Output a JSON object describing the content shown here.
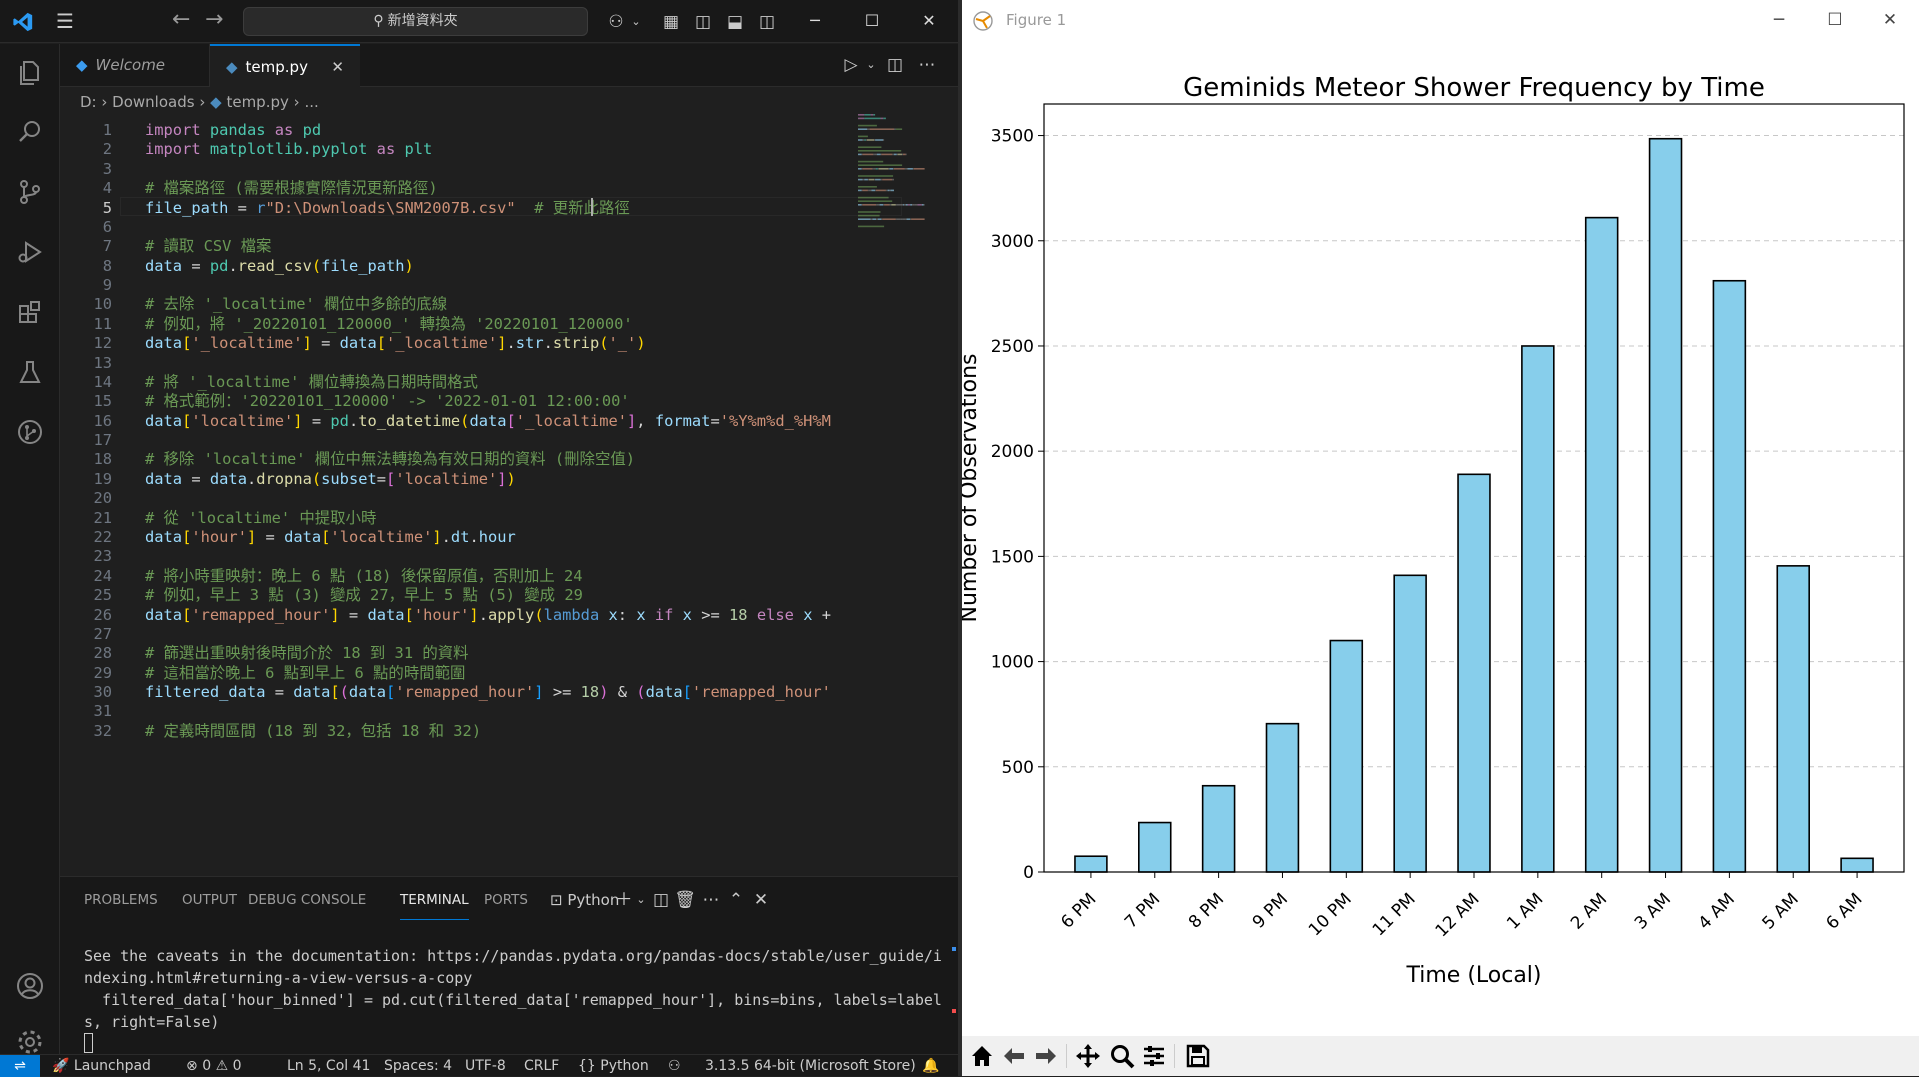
{
  "vscode": {
    "search_text": "新增資料夾",
    "tabs": [
      {
        "label": "Welcome"
      },
      {
        "label": "temp.py"
      }
    ],
    "breadcrumb": {
      "drive": "D:",
      "folder": "Downloads",
      "file": "temp.py",
      "ellipsis": "..."
    },
    "code_lines": [
      {
        "n": 1
      },
      {
        "n": 2
      },
      {
        "n": 3
      },
      {
        "n": 4
      },
      {
        "n": 5
      },
      {
        "n": 6
      },
      {
        "n": 7
      },
      {
        "n": 8
      },
      {
        "n": 9
      },
      {
        "n": 10
      },
      {
        "n": 11
      },
      {
        "n": 12
      },
      {
        "n": 13
      },
      {
        "n": 14
      },
      {
        "n": 15
      },
      {
        "n": 16
      },
      {
        "n": 17
      },
      {
        "n": 18
      },
      {
        "n": 19
      },
      {
        "n": 20
      },
      {
        "n": 21
      },
      {
        "n": 22
      },
      {
        "n": 23
      },
      {
        "n": 24
      },
      {
        "n": 25
      },
      {
        "n": 26
      },
      {
        "n": 27
      },
      {
        "n": 28
      },
      {
        "n": 29
      },
      {
        "n": 30
      },
      {
        "n": 31
      },
      {
        "n": 32
      }
    ],
    "code": [
      [
        [
          "kw",
          "import "
        ],
        [
          "mo",
          "pandas "
        ],
        [
          "kw",
          "as "
        ],
        [
          "mo",
          "pd"
        ]
      ],
      [
        [
          "kw",
          "import "
        ],
        [
          "mo",
          "matplotlib.pyplot "
        ],
        [
          "kw",
          "as "
        ],
        [
          "mo",
          "plt"
        ]
      ],
      [],
      [
        [
          "cm",
          "# 檔案路徑 (需要根據實際情況更新路徑)"
        ]
      ],
      [
        [
          "va",
          "file_path "
        ],
        [
          "op",
          "= "
        ],
        [
          "kw2",
          "r"
        ],
        [
          "st",
          "\"D:\\Downloads\\SNM2007B.csv\""
        ],
        [
          "op",
          "  "
        ],
        [
          "cm",
          "# 更新此路徑"
        ]
      ],
      [],
      [
        [
          "cm",
          "# 讀取 CSV 檔案"
        ]
      ],
      [
        [
          "va",
          "data "
        ],
        [
          "op",
          "= "
        ],
        [
          "mo",
          "pd"
        ],
        [
          "op",
          "."
        ],
        [
          "fn",
          "read_csv"
        ],
        [
          "br1",
          "("
        ],
        [
          "va",
          "file_path"
        ],
        [
          "br1",
          ")"
        ]
      ],
      [],
      [
        [
          "cm",
          "# 去除 '_localtime' 欄位中多餘的底線"
        ]
      ],
      [
        [
          "cm",
          "# 例如，將 '_20220101_120000_' 轉換為 '20220101_120000'"
        ]
      ],
      [
        [
          "va",
          "data"
        ],
        [
          "br1",
          "["
        ],
        [
          "st",
          "'_localtime'"
        ],
        [
          "br1",
          "]"
        ],
        [
          "op",
          " = "
        ],
        [
          "va",
          "data"
        ],
        [
          "br1",
          "["
        ],
        [
          "st",
          "'_localtime'"
        ],
        [
          "br1",
          "]"
        ],
        [
          "op",
          "."
        ],
        [
          "va",
          "str"
        ],
        [
          "op",
          "."
        ],
        [
          "fn",
          "strip"
        ],
        [
          "br1",
          "("
        ],
        [
          "st",
          "'_'"
        ],
        [
          "br1",
          ")"
        ]
      ],
      [],
      [
        [
          "cm",
          "# 將 '_localtime' 欄位轉換為日期時間格式"
        ]
      ],
      [
        [
          "cm",
          "# 格式範例：'20220101_120000' -> '2022-01-01 12:00:00'"
        ]
      ],
      [
        [
          "va",
          "data"
        ],
        [
          "br1",
          "["
        ],
        [
          "st",
          "'localtime'"
        ],
        [
          "br1",
          "]"
        ],
        [
          "op",
          " = "
        ],
        [
          "mo",
          "pd"
        ],
        [
          "op",
          "."
        ],
        [
          "fn",
          "to_datetime"
        ],
        [
          "br1",
          "("
        ],
        [
          "va",
          "data"
        ],
        [
          "br2",
          "["
        ],
        [
          "st",
          "'_localtime'"
        ],
        [
          "br2",
          "]"
        ],
        [
          "op",
          ", "
        ],
        [
          "va",
          "format"
        ],
        [
          "op",
          "="
        ],
        [
          "st",
          "'%Y%m%d_%H%M"
        ]
      ],
      [],
      [
        [
          "cm",
          "# 移除 'localtime' 欄位中無法轉換為有效日期的資料 (刪除空值)"
        ]
      ],
      [
        [
          "va",
          "data "
        ],
        [
          "op",
          "= "
        ],
        [
          "va",
          "data"
        ],
        [
          "op",
          "."
        ],
        [
          "fn",
          "dropna"
        ],
        [
          "br1",
          "("
        ],
        [
          "va",
          "subset"
        ],
        [
          "op",
          "="
        ],
        [
          "br2",
          "["
        ],
        [
          "st",
          "'localtime'"
        ],
        [
          "br2",
          "]"
        ],
        [
          "br1",
          ")"
        ]
      ],
      [],
      [
        [
          "cm",
          "# 從 'localtime' 中提取小時"
        ]
      ],
      [
        [
          "va",
          "data"
        ],
        [
          "br1",
          "["
        ],
        [
          "st",
          "'hour'"
        ],
        [
          "br1",
          "]"
        ],
        [
          "op",
          " = "
        ],
        [
          "va",
          "data"
        ],
        [
          "br1",
          "["
        ],
        [
          "st",
          "'localtime'"
        ],
        [
          "br1",
          "]"
        ],
        [
          "op",
          "."
        ],
        [
          "va",
          "dt"
        ],
        [
          "op",
          "."
        ],
        [
          "va",
          "hour"
        ]
      ],
      [],
      [
        [
          "cm",
          "# 將小時重映射：晚上 6 點 (18) 後保留原值，否則加上 24"
        ]
      ],
      [
        [
          "cm",
          "# 例如，早上 3 點 (3) 變成 27，早上 5 點 (5) 變成 29"
        ]
      ],
      [
        [
          "va",
          "data"
        ],
        [
          "br1",
          "["
        ],
        [
          "st",
          "'remapped_hour'"
        ],
        [
          "br1",
          "]"
        ],
        [
          "op",
          " = "
        ],
        [
          "va",
          "data"
        ],
        [
          "br1",
          "["
        ],
        [
          "st",
          "'hour'"
        ],
        [
          "br1",
          "]"
        ],
        [
          "op",
          "."
        ],
        [
          "fn",
          "apply"
        ],
        [
          "br1",
          "("
        ],
        [
          "kw2",
          "lambda "
        ],
        [
          "va",
          "x"
        ],
        [
          "op",
          ": "
        ],
        [
          "va",
          "x "
        ],
        [
          "kw",
          "if "
        ],
        [
          "va",
          "x "
        ],
        [
          "op",
          ">= "
        ],
        [
          "nu",
          "18 "
        ],
        [
          "kw",
          "else "
        ],
        [
          "va",
          "x "
        ],
        [
          "op",
          "+"
        ]
      ],
      [],
      [
        [
          "cm",
          "# 篩選出重映射後時間介於 18 到 31 的資料"
        ]
      ],
      [
        [
          "cm",
          "# 這相當於晚上 6 點到早上 6 點的時間範圍"
        ]
      ],
      [
        [
          "va",
          "filtered_data "
        ],
        [
          "op",
          "= "
        ],
        [
          "va",
          "data"
        ],
        [
          "br1",
          "["
        ],
        [
          "br2",
          "("
        ],
        [
          "va",
          "data"
        ],
        [
          "br3",
          "["
        ],
        [
          "st",
          "'remapped_hour'"
        ],
        [
          "br3",
          "]"
        ],
        [
          "op",
          " >= "
        ],
        [
          "nu",
          "18"
        ],
        [
          "br2",
          ")"
        ],
        [
          "op",
          " & "
        ],
        [
          "br2",
          "("
        ],
        [
          "va",
          "data"
        ],
        [
          "br3",
          "["
        ],
        [
          "st",
          "'remapped_hour'"
        ]
      ],
      [],
      [
        [
          "cm",
          "# 定義時間區間 (18 到 32，包括 18 和 32)"
        ]
      ]
    ],
    "panel_tabs": [
      {
        "label": "PROBLEMS"
      },
      {
        "label": "OUTPUT"
      },
      {
        "label": "DEBUG CONSOLE"
      },
      {
        "label": "TERMINAL"
      },
      {
        "label": "PORTS"
      }
    ],
    "terminal_profile": "Python",
    "terminal_lines": [
      "See the caveats in the documentation: https://pandas.pydata.org/pandas-docs/stable/user_guide/i",
      "ndexing.html#returning-a-view-versus-a-copy",
      "  filtered_data['hour_binned'] = pd.cut(filtered_data['remapped_hour'], bins=bins, labels=label",
      "s, right=False)"
    ],
    "status": {
      "launchpad": "Launchpad",
      "errors": "0",
      "warnings": "0",
      "position": "Ln 5, Col 41",
      "spaces": "Spaces: 4",
      "encoding": "UTF-8",
      "eol": "CRLF",
      "language": "Python",
      "interpreter": "3.13.5 64-bit (Microsoft Store)"
    }
  },
  "figure": {
    "window_title": "Figure 1"
  },
  "chart_data": {
    "type": "bar",
    "title": "Geminids Meteor Shower Frequency by Time",
    "xlabel": "Time (Local)",
    "ylabel": "Number of Observations",
    "categories": [
      "6 PM",
      "7 PM",
      "8 PM",
      "9 PM",
      "10 PM",
      "11 PM",
      "12 AM",
      "1 AM",
      "2 AM",
      "3 AM",
      "4 AM",
      "5 AM",
      "6 AM"
    ],
    "values": [
      75,
      235,
      410,
      705,
      1100,
      1410,
      1890,
      2500,
      3110,
      3485,
      2810,
      1455,
      65
    ],
    "ylim": [
      0,
      3650
    ],
    "yticks": [
      0,
      500,
      1000,
      1500,
      2000,
      2500,
      3000,
      3500
    ],
    "grid": "y dashed",
    "bar_color": "#87ceeb",
    "edge_color": "#000000"
  }
}
